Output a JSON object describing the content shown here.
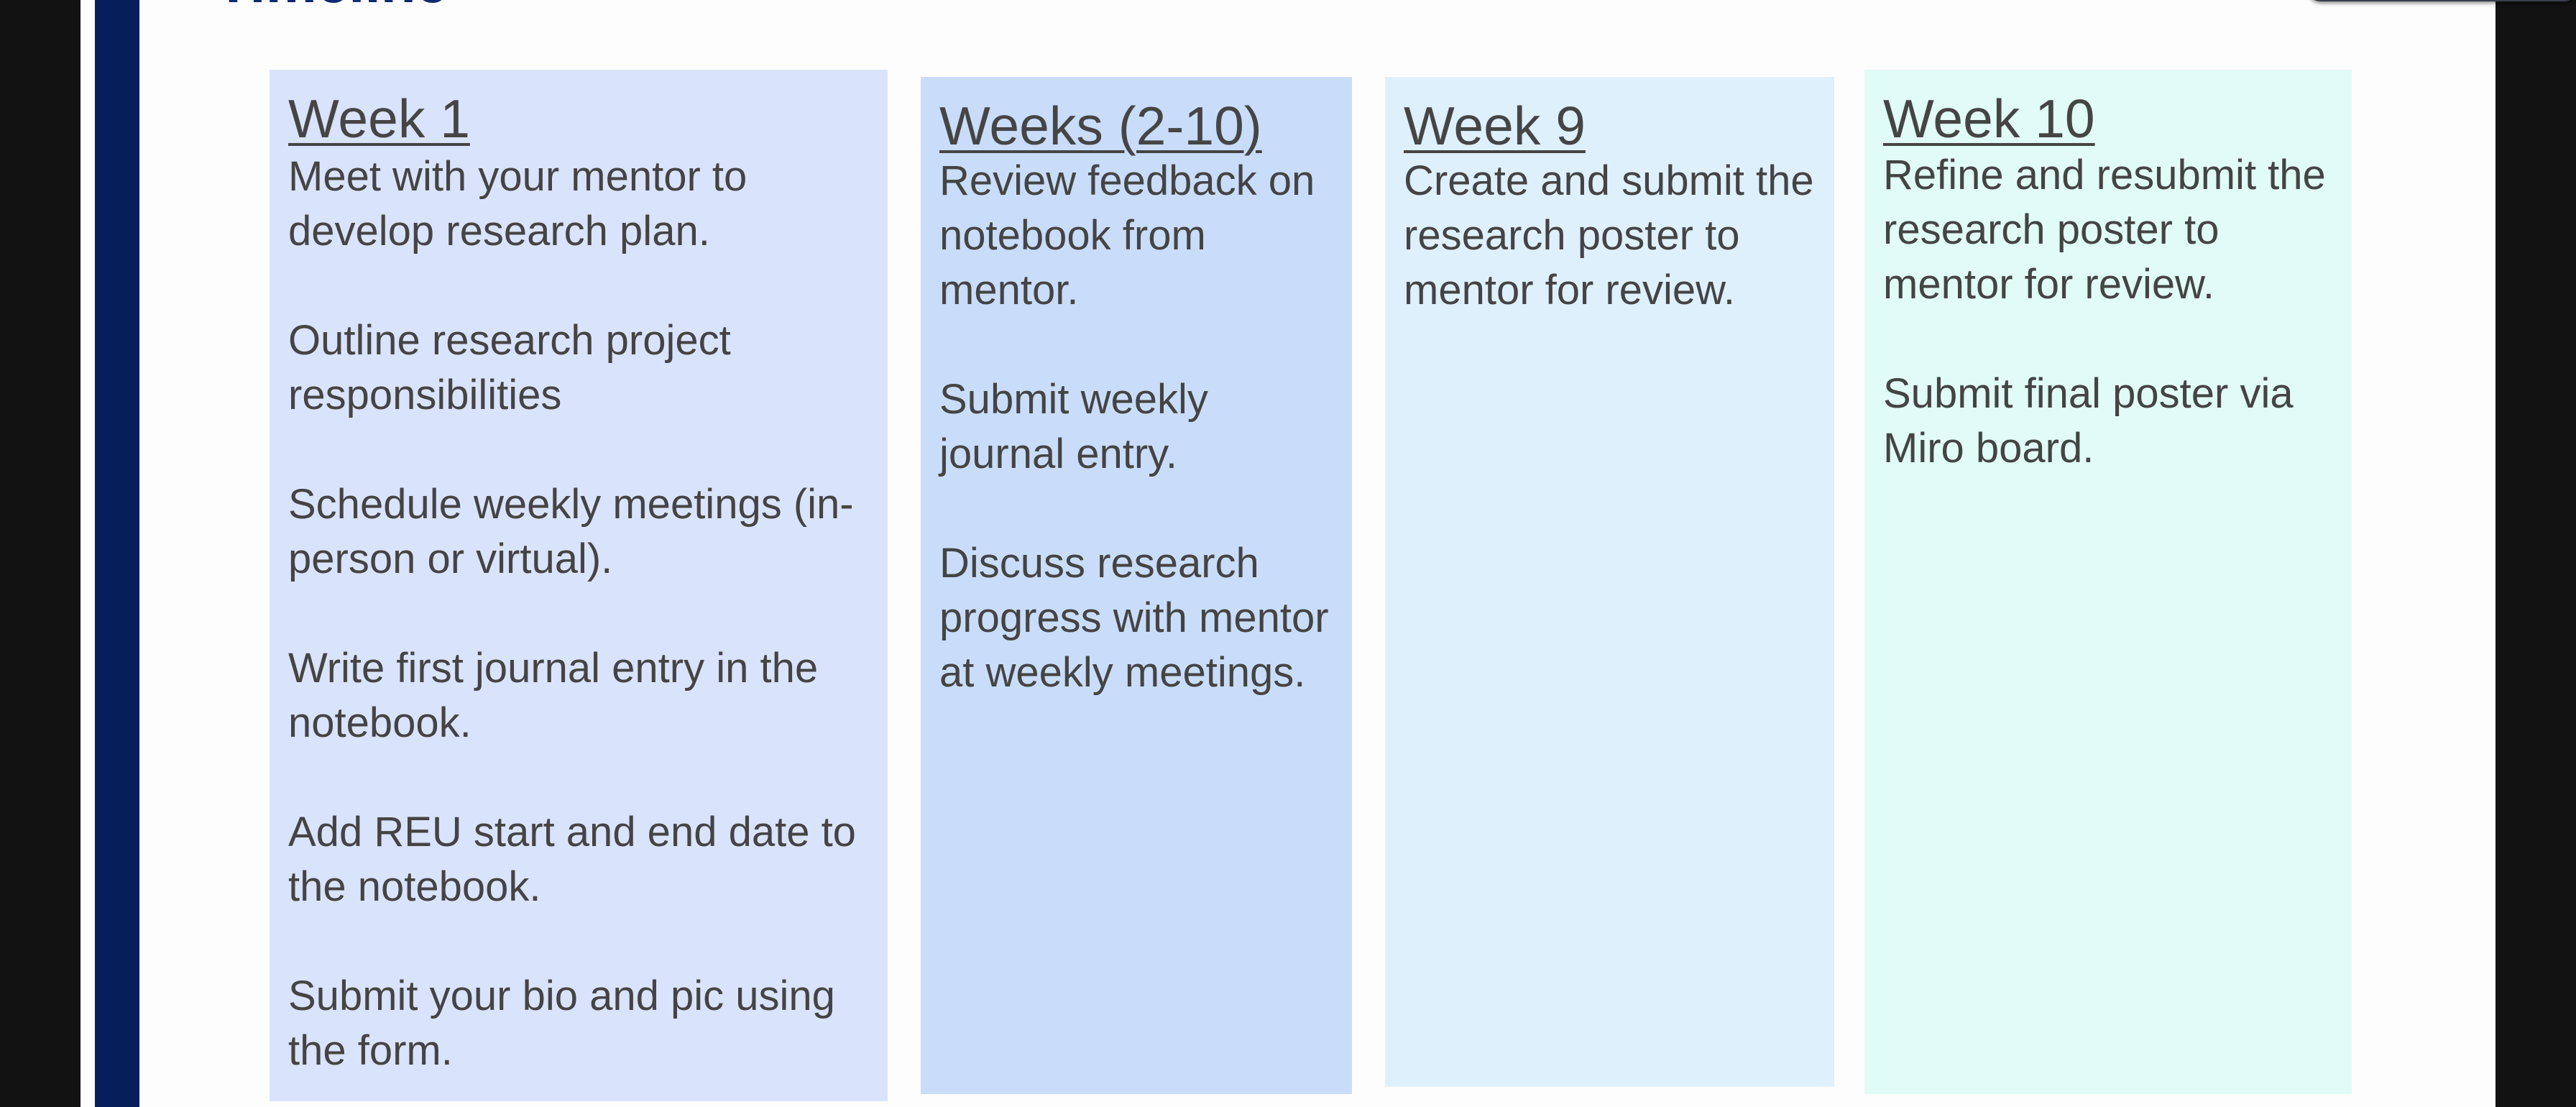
{
  "slide": {
    "title": "Timeline",
    "accent_color": "#061e5a",
    "title_color": "#0d2a6e"
  },
  "columns": [
    {
      "heading": "Week 1",
      "bg": "#dae3fc",
      "items": [
        "Meet with your mentor to develop research plan.",
        "Outline research project responsibilities",
        "Schedule weekly meetings (in-person or virtual).",
        "Write first journal entry in the notebook.",
        "Add REU start and end date to the notebook.",
        "Submit your bio and pic using the form."
      ]
    },
    {
      "heading": "Weeks (2-10)",
      "bg": "#c9ddfa",
      "items": [
        "Review feedback on notebook from mentor.",
        "Submit weekly journal entry.",
        "Discuss research progress with mentor at weekly meetings."
      ]
    },
    {
      "heading": "Week 9",
      "bg": "#dff0fd",
      "items": [
        "Create and submit the research poster to mentor for review."
      ]
    },
    {
      "heading": "Week 10",
      "bg": "#e1fbf6",
      "items": [
        "Refine and resubmit the research poster to mentor for review.",
        "Submit final poster via Miro board."
      ]
    }
  ]
}
